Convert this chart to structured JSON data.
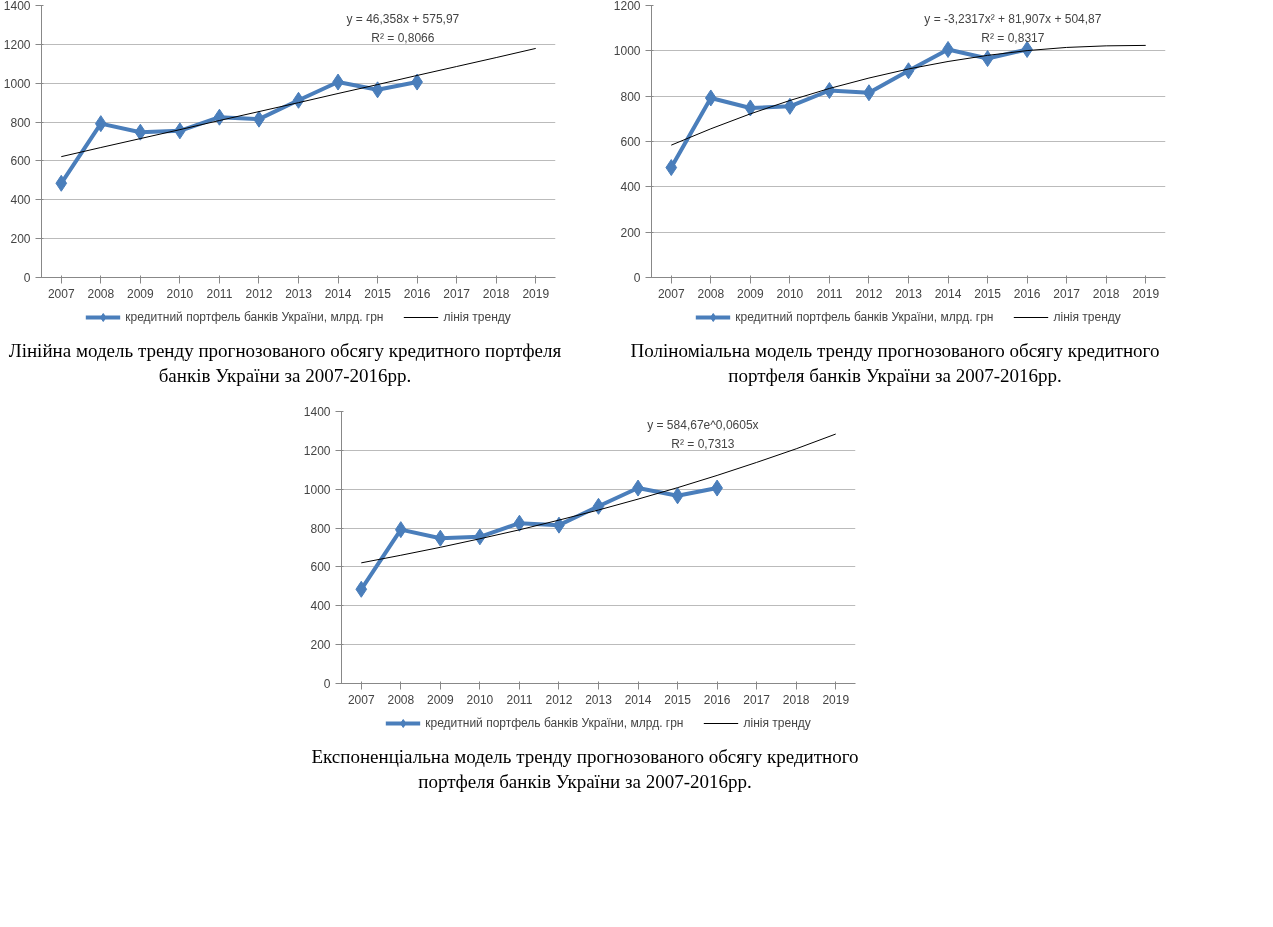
{
  "chart_data": [
    {
      "type": "line",
      "title": "Лінійна модель тренду прогнозованого обсягу кредитного портфеля банків України за 2007-2016рр.",
      "categories": [
        "2007",
        "2008",
        "2009",
        "2010",
        "2011",
        "2012",
        "2013",
        "2014",
        "2015",
        "2016",
        "2017",
        "2018",
        "2019"
      ],
      "series": [
        {
          "name": "кредитний портфель банків України, млрд. грн",
          "color": "#4a7ebb",
          "marker": "diamond",
          "values": [
            485,
            792,
            748,
            755,
            825,
            815,
            912,
            1006,
            966,
            1006,
            null,
            null,
            null
          ]
        },
        {
          "name": "лінія тренду",
          "color": "#000000",
          "marker": "none",
          "values": [
            622,
            669,
            715,
            761,
            808,
            854,
            900,
            947,
            993,
            1040,
            1086,
            1132,
            1179
          ]
        }
      ],
      "ylim": [
        0,
        1400
      ],
      "yticks": [
        0,
        200,
        400,
        600,
        800,
        1000,
        1200,
        1400
      ],
      "grid": "y",
      "legend": "bottom",
      "annotations": [
        "y = 46,358x + 575,97",
        "R² = 0,8066"
      ]
    },
    {
      "type": "line",
      "title": "Поліноміальна модель тренду прогнозованого обсягу кредитного портфеля банків України за 2007-2016рр.",
      "categories": [
        "2007",
        "2008",
        "2009",
        "2010",
        "2011",
        "2012",
        "2013",
        "2014",
        "2015",
        "2016",
        "2017",
        "2018",
        "2019"
      ],
      "series": [
        {
          "name": "кредитний портфель банків України, млрд. грн",
          "color": "#4a7ebb",
          "marker": "diamond",
          "values": [
            485,
            792,
            748,
            755,
            825,
            815,
            912,
            1006,
            966,
            1006,
            null,
            null,
            null
          ]
        },
        {
          "name": "лінія тренду",
          "color": "#000000",
          "marker": "none",
          "values": [
            584,
            656,
            722,
            781,
            834,
            880,
            920,
            953,
            980,
            1001,
            1015,
            1022,
            1024
          ]
        }
      ],
      "ylim": [
        0,
        1200
      ],
      "yticks": [
        0,
        200,
        400,
        600,
        800,
        1000,
        1200
      ],
      "grid": "y",
      "legend": "bottom",
      "annotations": [
        "y = -3,2317x² + 81,907x + 504,87",
        "R² = 0,8317"
      ]
    },
    {
      "type": "line",
      "title": "Експоненціальна модель тренду прогнозованого обсягу кредитного портфеля банків України за 2007-2016рр.",
      "categories": [
        "2007",
        "2008",
        "2009",
        "2010",
        "2011",
        "2012",
        "2013",
        "2014",
        "2015",
        "2016",
        "2017",
        "2018",
        "2019"
      ],
      "series": [
        {
          "name": "кредитний портфель банків України, млрд. грн",
          "color": "#4a7ebb",
          "marker": "diamond",
          "values": [
            485,
            792,
            748,
            755,
            825,
            815,
            912,
            1006,
            966,
            1006,
            null,
            null,
            null
          ]
        },
        {
          "name": "лінія тренду",
          "color": "#000000",
          "marker": "none",
          "values": [
            621,
            660,
            701,
            745,
            791,
            841,
            893,
            949,
            1008,
            1071,
            1138,
            1208,
            1284
          ]
        }
      ],
      "ylim": [
        0,
        1400
      ],
      "yticks": [
        0,
        200,
        400,
        600,
        800,
        1000,
        1200,
        1400
      ],
      "grid": "y",
      "legend": "bottom",
      "annotations": [
        "y = 584,67e^0,0605x",
        "R² = 0,7313"
      ]
    }
  ]
}
